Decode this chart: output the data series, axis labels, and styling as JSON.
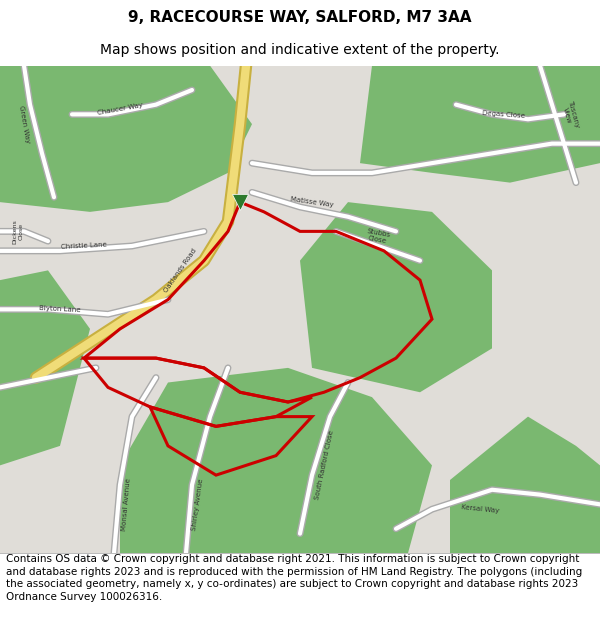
{
  "title": "9, RACECOURSE WAY, SALFORD, M7 3AA",
  "subtitle": "Map shows position and indicative extent of the property.",
  "footer": "Contains OS data © Crown copyright and database right 2021. This information is subject to Crown copyright and database rights 2023 and is reproduced with the permission of HM Land Registry. The polygons (including the associated geometry, namely x, y co-ordinates) are subject to Crown copyright and database rights 2023 Ordnance Survey 100026316.",
  "bg_color": "#ffffff",
  "title_fontsize": 11,
  "subtitle_fontsize": 10,
  "footer_fontsize": 7.5,
  "map_bg": "#e0ddd8",
  "green_color": "#7ab870",
  "yellow_road": "#f0dc78",
  "yellow_road_edge": "#c8b040",
  "white_road": "#ffffff",
  "road_edge": "#aaaaaa",
  "red_outline": "#cc0000",
  "road_label_color": "#333333",
  "road_label_fontsize": 5,
  "marker_color": "#2d7a2d"
}
